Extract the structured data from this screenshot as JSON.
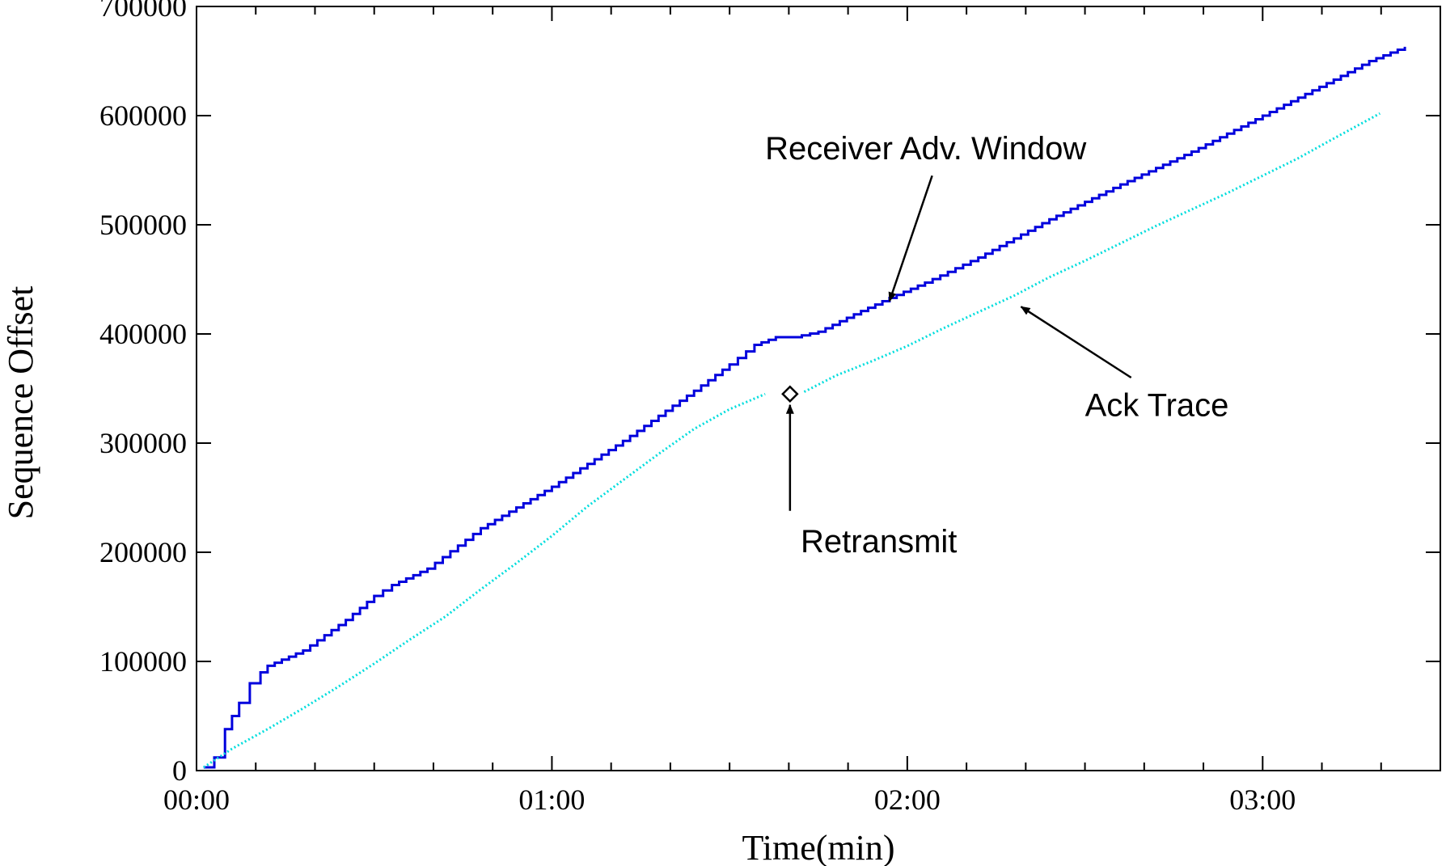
{
  "chart_data": {
    "type": "line",
    "title": "",
    "xlabel": "Time(min)",
    "ylabel": "Sequence Offset",
    "xlim": [
      0,
      3.5
    ],
    "ylim": [
      0,
      700000
    ],
    "grid": false,
    "x_ticks": [
      {
        "value": 0,
        "label": "00:00"
      },
      {
        "value": 1,
        "label": "01:00"
      },
      {
        "value": 2,
        "label": "02:00"
      },
      {
        "value": 3,
        "label": "03:00"
      }
    ],
    "y_ticks": [
      {
        "value": 0,
        "label": "0"
      },
      {
        "value": 100000,
        "label": "100000"
      },
      {
        "value": 200000,
        "label": "200000"
      },
      {
        "value": 300000,
        "label": "300000"
      },
      {
        "value": 400000,
        "label": "400000"
      },
      {
        "value": 500000,
        "label": "500000"
      },
      {
        "value": 600000,
        "label": "600000"
      },
      {
        "value": 700000,
        "label": "700000"
      }
    ],
    "series": [
      {
        "color": "#0000dd",
        "style": "step",
        "x": [
          0.02,
          0.05,
          0.08,
          0.12,
          0.15,
          0.18,
          0.2,
          0.3,
          0.42,
          0.5,
          0.55,
          0.65,
          0.8,
          1.0,
          1.2,
          1.4,
          1.5,
          1.57,
          1.63,
          1.68,
          1.75,
          1.85,
          1.95,
          2.05,
          2.2,
          2.4,
          2.6,
          2.8,
          3.0,
          3.2,
          3.3,
          3.4
        ],
        "y": [
          3000,
          12000,
          38000,
          62000,
          80000,
          90000,
          96000,
          110000,
          138000,
          160000,
          170000,
          185000,
          222000,
          260000,
          302000,
          348000,
          372000,
          390000,
          397000,
          397000,
          402000,
          418000,
          433000,
          447000,
          470000,
          505000,
          537000,
          567000,
          600000,
          633000,
          650000,
          663000
        ]
      },
      {
        "color": "#00dddd",
        "style": "dotted",
        "x": [
          0.02,
          0.1,
          0.2,
          0.3,
          0.4,
          0.5,
          0.6,
          0.7,
          0.8,
          0.9,
          1.0,
          1.1,
          1.2,
          1.3,
          1.4,
          1.5,
          1.6
        ],
        "y": [
          3000,
          20000,
          38000,
          57000,
          77000,
          98000,
          120000,
          141000,
          166000,
          190000,
          215000,
          242000,
          266000,
          290000,
          313000,
          331000,
          345000
        ]
      },
      {
        "color": "#00dddd",
        "style": "dotted",
        "x": [
          1.71,
          1.8,
          1.9,
          2.0,
          2.1,
          2.2,
          2.3,
          2.4,
          2.5,
          2.6,
          2.7,
          2.8,
          2.9,
          3.0,
          3.1,
          3.2,
          3.33
        ],
        "y": [
          347000,
          362000,
          375000,
          389000,
          405000,
          420000,
          435000,
          452000,
          467000,
          483000,
          499000,
          514000,
          529000,
          545000,
          561000,
          579000,
          602000
        ]
      }
    ],
    "markers": [
      {
        "x": 1.67,
        "y": 345000,
        "shape": "diamond"
      }
    ],
    "annotations": [
      {
        "text": "Receiver Adv. Window",
        "text_x": 1.6,
        "text_y": 560000,
        "arrow_x": 1.95,
        "arrow_y": 430000
      },
      {
        "text": "Ack Trace",
        "text_x": 2.5,
        "text_y": 325000,
        "arrow_x": 2.32,
        "arrow_y": 425000
      },
      {
        "text": "Retransmit",
        "text_x": 1.7,
        "text_y": 200000,
        "arrow_x": 1.67,
        "arrow_y": 335000
      }
    ]
  }
}
